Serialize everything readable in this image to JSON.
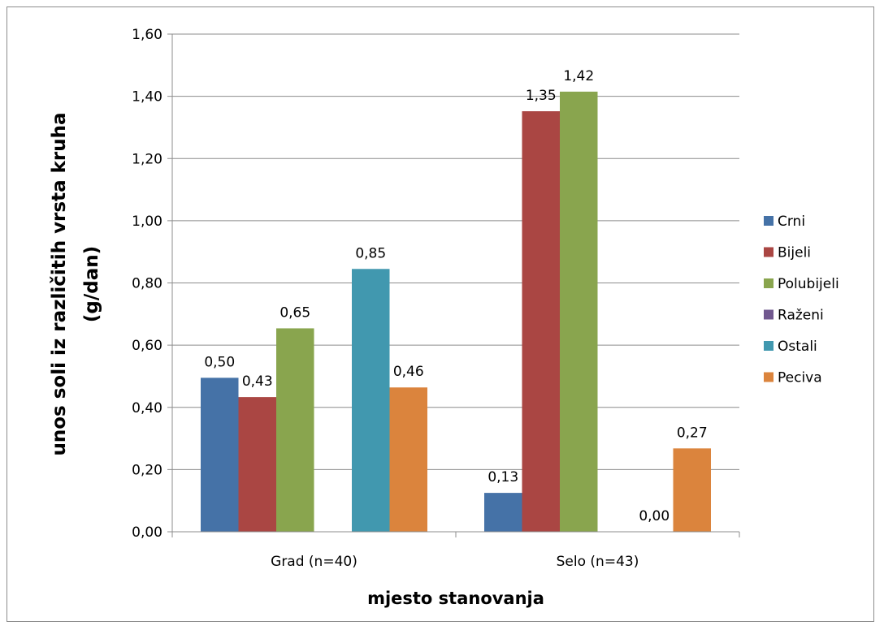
{
  "chart_data": {
    "type": "bar",
    "title": "",
    "xlabel": "mjesto stanovanja",
    "ylabel_lines": [
      "unos soli iz različitih vrsta kruha",
      "(g/dan)"
    ],
    "categories": [
      "Grad (n=40)",
      "Selo (n=43)"
    ],
    "ylim": [
      0,
      1.6
    ],
    "yticks": [
      0,
      0.2,
      0.4,
      0.6,
      0.8,
      1.0,
      1.2,
      1.4,
      1.6
    ],
    "ytick_labels": [
      "0,00",
      "0,20",
      "0,40",
      "0,60",
      "0,80",
      "1,00",
      "1,20",
      "1,40",
      "1,60"
    ],
    "grid": true,
    "legend_position": "right",
    "series": [
      {
        "name": "Crni",
        "color": "#4572A7",
        "values": [
          0.495,
          0.125
        ],
        "labels": [
          "0,50",
          "0,13"
        ]
      },
      {
        "name": "Bijeli",
        "color": "#AA4643",
        "values": [
          0.433,
          1.352
        ],
        "labels": [
          "0,43",
          "1,35"
        ]
      },
      {
        "name": "Polubijeli",
        "color": "#89A54E",
        "values": [
          0.654,
          1.415
        ],
        "labels": [
          "0,65",
          "1,42"
        ]
      },
      {
        "name": "Raženi",
        "color": "#71588F",
        "values": [
          null,
          null
        ],
        "labels": [
          "",
          ""
        ]
      },
      {
        "name": "Ostali",
        "color": "#4198AF",
        "values": [
          0.845,
          0.0
        ],
        "labels": [
          "0,85",
          "0,00"
        ]
      },
      {
        "name": "Peciva",
        "color": "#DB843D",
        "values": [
          0.464,
          0.268
        ],
        "labels": [
          "0,46",
          "0,27"
        ]
      }
    ]
  }
}
